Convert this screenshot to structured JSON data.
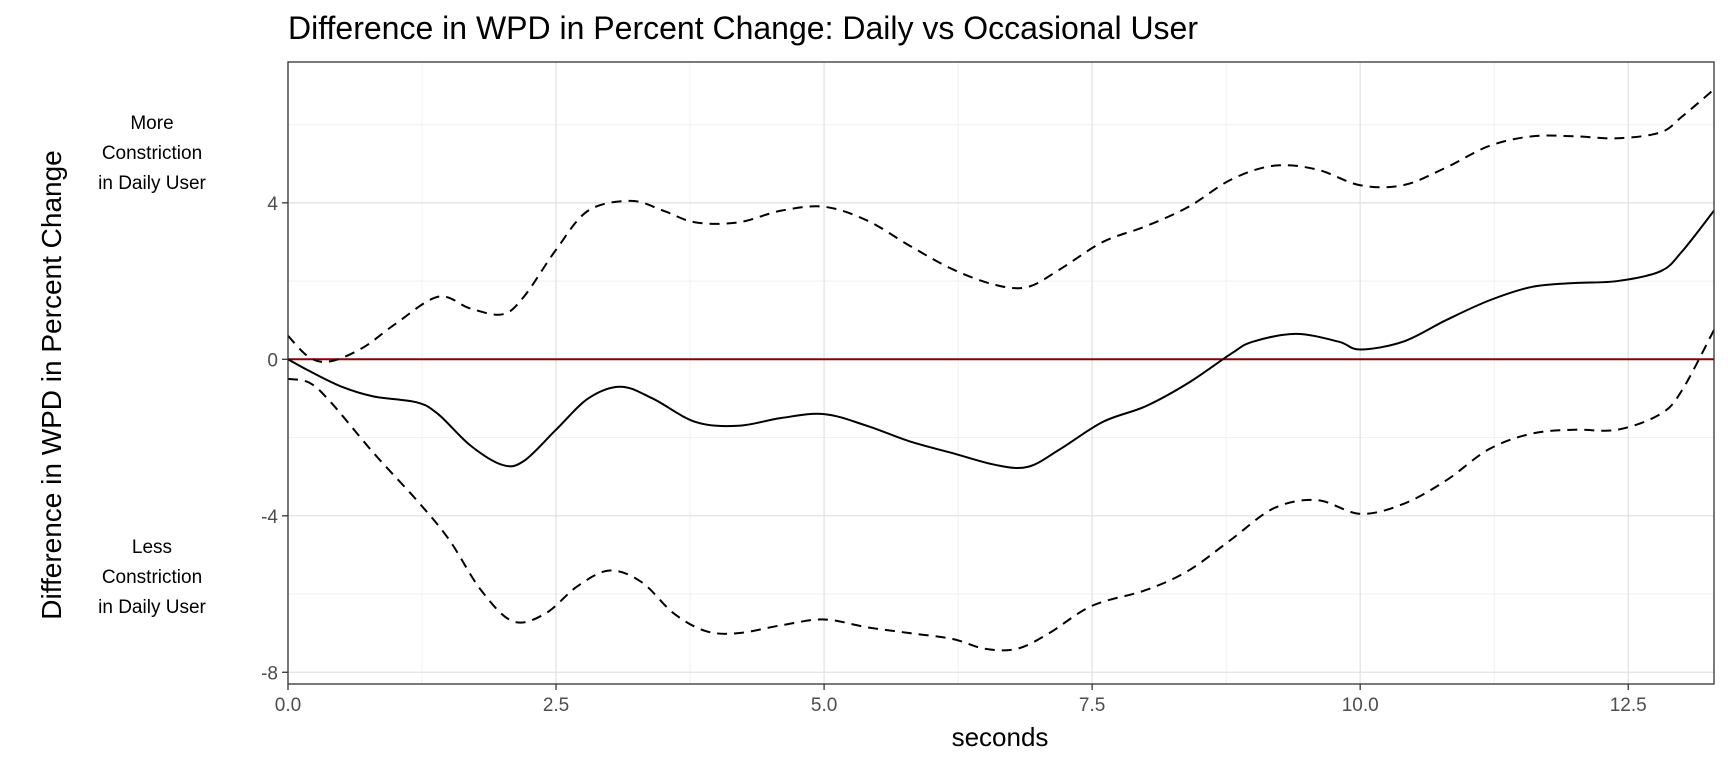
{
  "chart_data": {
    "type": "line",
    "title": "Difference in WPD in Percent Change: Daily vs Occasional User",
    "xlabel": "seconds",
    "ylabel": "Difference in WPD in Percent Change",
    "annotations": {
      "top": [
        "More",
        "Constriction",
        "in Daily User"
      ],
      "bottom": [
        "Less",
        "Constriction",
        "in Daily User"
      ]
    },
    "xlim": [
      0,
      13.3
    ],
    "ylim": [
      -8.3,
      7.6
    ],
    "x_ticks": [
      0,
      2.5,
      5,
      7.5,
      10,
      12.5
    ],
    "x_tick_labels": [
      "0.0",
      "2.5",
      "5.0",
      "7.5",
      "10.0",
      "12.5"
    ],
    "y_ticks": [
      -8,
      -4,
      0,
      4
    ],
    "y_tick_labels": [
      "-8",
      "-4",
      "0",
      "4"
    ],
    "reference_line": {
      "y": 0,
      "color": "#8b0000"
    },
    "grid": true,
    "series": [
      {
        "role": "estimate",
        "style": "solid",
        "color": "#000000",
        "x": [
          0,
          0.2,
          0.5,
          0.8,
          1.2,
          1.4,
          1.7,
          2.0,
          2.2,
          2.5,
          2.8,
          3.1,
          3.4,
          3.8,
          4.2,
          4.6,
          5.0,
          5.4,
          5.8,
          6.2,
          6.6,
          6.9,
          7.2,
          7.6,
          8.0,
          8.4,
          8.8,
          9.0,
          9.4,
          9.8,
          10.0,
          10.4,
          10.8,
          11.2,
          11.6,
          12.0,
          12.4,
          12.8,
          13.0,
          13.3
        ],
        "y": [
          0,
          -0.3,
          -0.7,
          -0.95,
          -1.1,
          -1.4,
          -2.2,
          -2.7,
          -2.6,
          -1.8,
          -1.0,
          -0.7,
          -1.0,
          -1.6,
          -1.7,
          -1.5,
          -1.4,
          -1.7,
          -2.1,
          -2.4,
          -2.7,
          -2.75,
          -2.3,
          -1.6,
          -1.2,
          -0.6,
          0.15,
          0.45,
          0.65,
          0.45,
          0.25,
          0.45,
          1.0,
          1.5,
          1.85,
          1.95,
          2.0,
          2.25,
          2.75,
          3.8
        ]
      },
      {
        "role": "upper_bound",
        "style": "dashed",
        "color": "#000000",
        "x": [
          0,
          0.2,
          0.4,
          0.7,
          1.0,
          1.4,
          1.7,
          2.0,
          2.2,
          2.5,
          2.8,
          3.2,
          3.5,
          3.8,
          4.2,
          4.6,
          5.0,
          5.4,
          5.8,
          6.2,
          6.6,
          6.9,
          7.2,
          7.6,
          8.0,
          8.4,
          8.8,
          9.2,
          9.6,
          10.0,
          10.4,
          10.8,
          11.2,
          11.6,
          12.0,
          12.4,
          12.8,
          13.0,
          13.3
        ],
        "y": [
          0.6,
          0.05,
          -0.05,
          0.3,
          0.9,
          1.6,
          1.3,
          1.15,
          1.6,
          2.8,
          3.8,
          4.05,
          3.8,
          3.5,
          3.5,
          3.8,
          3.9,
          3.55,
          2.9,
          2.3,
          1.9,
          1.85,
          2.3,
          3.0,
          3.4,
          3.9,
          4.6,
          4.95,
          4.85,
          4.45,
          4.45,
          4.9,
          5.45,
          5.7,
          5.7,
          5.65,
          5.8,
          6.2,
          6.9
        ]
      },
      {
        "role": "lower_bound",
        "style": "dashed",
        "color": "#000000",
        "x": [
          0,
          0.2,
          0.4,
          0.8,
          1.2,
          1.5,
          1.8,
          2.1,
          2.4,
          2.7,
          3.0,
          3.3,
          3.6,
          3.9,
          4.2,
          4.6,
          5.0,
          5.4,
          5.8,
          6.2,
          6.5,
          6.8,
          7.1,
          7.5,
          8.0,
          8.4,
          8.8,
          9.2,
          9.6,
          10.0,
          10.4,
          10.8,
          11.2,
          11.6,
          12.0,
          12.4,
          12.8,
          13.0,
          13.3
        ],
        "y": [
          -0.5,
          -0.6,
          -1.1,
          -2.4,
          -3.6,
          -4.6,
          -5.9,
          -6.7,
          -6.5,
          -5.8,
          -5.4,
          -5.7,
          -6.5,
          -6.95,
          -7.0,
          -6.8,
          -6.65,
          -6.85,
          -7.0,
          -7.15,
          -7.4,
          -7.4,
          -7.0,
          -6.3,
          -5.9,
          -5.4,
          -4.6,
          -3.8,
          -3.6,
          -3.95,
          -3.7,
          -3.1,
          -2.3,
          -1.9,
          -1.8,
          -1.8,
          -1.4,
          -0.8,
          0.75
        ]
      }
    ]
  }
}
